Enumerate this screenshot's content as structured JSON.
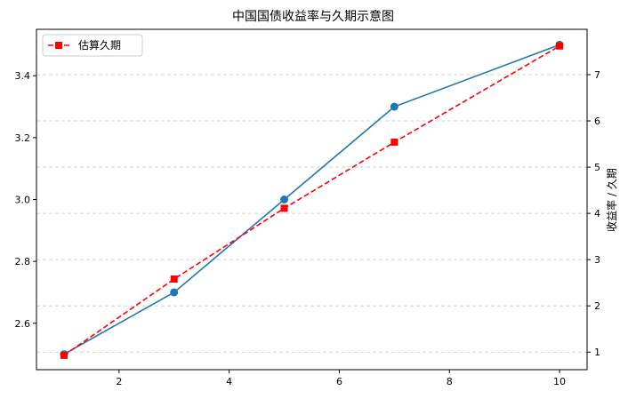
{
  "chart_data": {
    "type": "line",
    "title": "中国国债收益率与久期示意图",
    "xlabel": "",
    "ylabel_left": "",
    "ylabel_right": "收益率 / 久期",
    "xlim": [
      0.5,
      10.5
    ],
    "ylim_left": [
      2.45,
      3.55
    ],
    "ylim_right": [
      0.62,
      7.98
    ],
    "xticks": [
      2,
      4,
      6,
      8,
      10
    ],
    "yticks_left": [
      2.6,
      2.8,
      3.0,
      3.2,
      3.4
    ],
    "yticks_right": [
      1,
      2,
      3,
      4,
      5,
      6,
      7
    ],
    "grid": "horizontal dashed (right axis)",
    "legend_position": "upper-left",
    "series": [
      {
        "name": "",
        "axis": "left",
        "color": "#1f77b4",
        "marker": "circle",
        "linestyle": "solid",
        "x": [
          1,
          3,
          5,
          7,
          10
        ],
        "y": [
          2.5,
          2.7,
          3.0,
          3.3,
          3.5
        ]
      },
      {
        "name": "估算久期",
        "axis": "right",
        "color": "#ff0000",
        "marker": "square",
        "linestyle": "dashed",
        "x": [
          1,
          3,
          5,
          7,
          10
        ],
        "y": [
          0.93,
          2.58,
          4.11,
          5.54,
          7.62
        ]
      }
    ]
  }
}
